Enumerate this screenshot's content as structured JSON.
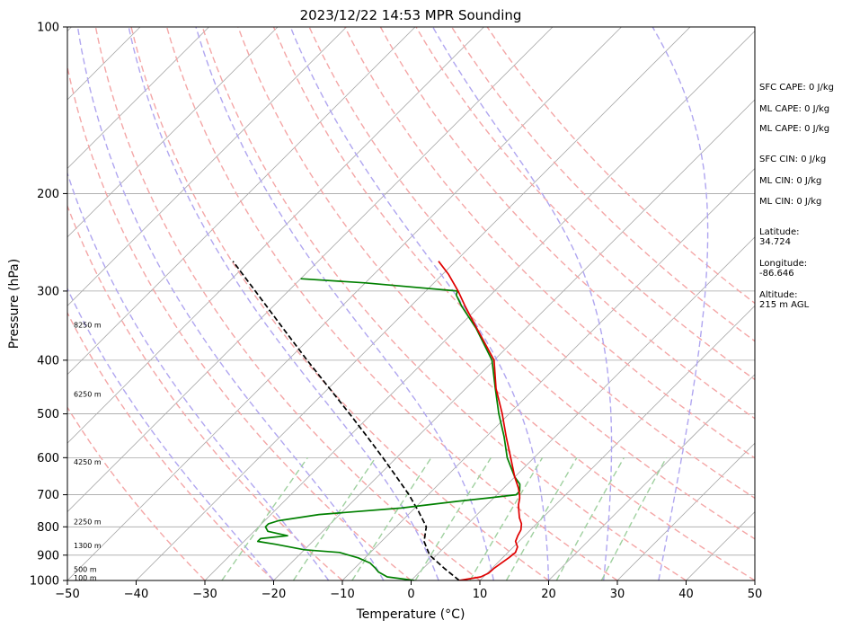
{
  "chart_data": {
    "type": "skew-t",
    "title": "2023/12/22 14:53 MPR Sounding",
    "xlabel": "Temperature (°C)",
    "ylabel": "Pressure (hPa)",
    "xlim": [
      -50,
      50
    ],
    "ylim": [
      1000,
      100
    ],
    "yscale": "log",
    "x_ticks": [
      "−50",
      "−40",
      "−30",
      "−20",
      "−10",
      "0",
      "10",
      "20",
      "30",
      "40",
      "50"
    ],
    "y_ticks": [
      {
        "p": 100,
        "label": "100"
      },
      {
        "p": 200,
        "label": "200"
      },
      {
        "p": 300,
        "label": "300"
      },
      {
        "p": 400,
        "label": "400"
      },
      {
        "p": 500,
        "label": "500"
      },
      {
        "p": 600,
        "label": "600"
      },
      {
        "p": 700,
        "label": "700"
      },
      {
        "p": 800,
        "label": "800"
      },
      {
        "p": 900,
        "label": "900"
      },
      {
        "p": 1000,
        "label": "1000"
      }
    ],
    "colors": {
      "temperature": "#e00000",
      "dewpoint": "#008000",
      "parcel": "#000000",
      "isotherms": "#a6a6a6",
      "isobars": "#a6a6a6",
      "dry_adiabats": "#f4a6a6",
      "moist_adiabats": "#b0a6f0",
      "mixing_ratio": "#9fd09f"
    },
    "temperature_profile": [
      [
        1000,
        7.0
      ],
      [
        985,
        9.6
      ],
      [
        970,
        10.2
      ],
      [
        950,
        10.3
      ],
      [
        930,
        10.6
      ],
      [
        910,
        10.9
      ],
      [
        890,
        11.1
      ],
      [
        870,
        10.6
      ],
      [
        850,
        9.5
      ],
      [
        830,
        9.0
      ],
      [
        810,
        8.6
      ],
      [
        790,
        7.8
      ],
      [
        770,
        6.6
      ],
      [
        750,
        5.6
      ],
      [
        730,
        4.6
      ],
      [
        710,
        3.8
      ],
      [
        700,
        3.3
      ],
      [
        680,
        2.1
      ],
      [
        650,
        0.0
      ],
      [
        600,
        -3.4
      ],
      [
        550,
        -7.1
      ],
      [
        500,
        -11.0
      ],
      [
        450,
        -15.6
      ],
      [
        400,
        -20.0
      ],
      [
        350,
        -27.2
      ],
      [
        320,
        -32.0
      ],
      [
        300,
        -35.3
      ],
      [
        280,
        -39.1
      ],
      [
        265,
        -42.5
      ]
    ],
    "dewpoint_profile": [
      [
        1000,
        0.5
      ],
      [
        985,
        -4.0
      ],
      [
        965,
        -6.0
      ],
      [
        950,
        -7.0
      ],
      [
        930,
        -8.5
      ],
      [
        910,
        -11.0
      ],
      [
        890,
        -14.5
      ],
      [
        880,
        -20.0
      ],
      [
        860,
        -25.0
      ],
      [
        850,
        -28.0
      ],
      [
        840,
        -28.0
      ],
      [
        830,
        -24.5
      ],
      [
        815,
        -28.0
      ],
      [
        800,
        -29.0
      ],
      [
        790,
        -29.0
      ],
      [
        780,
        -28.0
      ],
      [
        760,
        -23.0
      ],
      [
        740,
        -12.0
      ],
      [
        720,
        -5.0
      ],
      [
        710,
        -1.0
      ],
      [
        700,
        2.8
      ],
      [
        690,
        2.8
      ],
      [
        670,
        1.8
      ],
      [
        650,
        0.0
      ],
      [
        600,
        -3.9
      ],
      [
        550,
        -7.4
      ],
      [
        500,
        -11.5
      ],
      [
        450,
        -15.7
      ],
      [
        400,
        -20.3
      ],
      [
        350,
        -27.3
      ],
      [
        320,
        -32.5
      ],
      [
        305,
        -35.0
      ],
      [
        300,
        -35.4
      ],
      [
        290,
        -50.0
      ],
      [
        285,
        -60.0
      ]
    ],
    "parcel_profile": [
      [
        1000,
        7.0
      ],
      [
        950,
        3.0
      ],
      [
        900,
        -1.0
      ],
      [
        850,
        -3.8
      ],
      [
        800,
        -5.6
      ],
      [
        750,
        -9.0
      ],
      [
        700,
        -12.8
      ],
      [
        650,
        -17.2
      ],
      [
        600,
        -22.0
      ],
      [
        550,
        -27.3
      ],
      [
        500,
        -33.2
      ],
      [
        450,
        -39.8
      ],
      [
        400,
        -47.2
      ],
      [
        350,
        -55.4
      ],
      [
        300,
        -64.8
      ],
      [
        265,
        -72.4
      ]
    ],
    "height_labels": [
      {
        "p": 988,
        "label": "100 m"
      },
      {
        "p": 955,
        "label": "500 m"
      },
      {
        "p": 865,
        "label": "1300 m"
      },
      {
        "p": 783,
        "label": "2250 m"
      },
      {
        "p": 610,
        "label": "4250 m"
      },
      {
        "p": 460,
        "label": "6250 m"
      },
      {
        "p": 345,
        "label": "8250 m"
      }
    ],
    "annotations": [
      "SFC CAPE: 0 J/kg",
      "ML CAPE: 0 J/kg",
      "ML CAPE: 0 J/kg",
      "SFC CIN: 0 J/kg",
      "ML CIN: 0 J/kg",
      "ML CIN: 0 J/kg",
      "Latitude:\n34.724",
      "Longitude:\n-86.646",
      "Altitude:\n215 m AGL"
    ],
    "isotherms": [
      -140,
      -130,
      -120,
      -110,
      -100,
      -90,
      -80,
      -70,
      -60,
      -50,
      -40,
      -30,
      -20,
      -10,
      0,
      10,
      20,
      30,
      40,
      50
    ],
    "dry_adiabats_theta_c": [
      -30,
      -20,
      -10,
      0,
      10,
      20,
      30,
      40,
      50,
      60,
      70,
      80,
      90,
      100,
      110,
      120
    ],
    "moist_adiabats_c": [
      -20,
      -12,
      -4,
      4,
      12,
      20,
      28,
      36
    ],
    "mixing_ratio_gkg": [
      0.4,
      1,
      2,
      4,
      7,
      10,
      16,
      24
    ]
  }
}
